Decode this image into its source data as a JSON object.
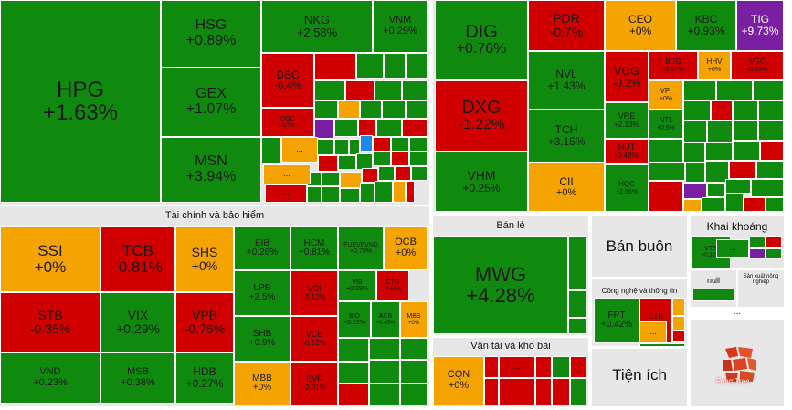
{
  "colors": {
    "up": "#0f8a0f",
    "down": "#d10000",
    "flat": "#f5a300",
    "ceiling": "#7b1fa2",
    "floor": "#1e88e5",
    "panel": "#e7e7e7"
  },
  "sections": {
    "finance": "Tài chính và bảo hiểm",
    "retail": "Bán lẻ",
    "wholesale": "Bán buôn",
    "mining": "Khai khoáng",
    "transport": "Vận tải và kho bãi",
    "tech": "Công nghệ và thông tin",
    "utilities": "Tiện ích",
    "null_label": "null",
    "agri": "Sản xuất nông nghiệp",
    "logo": "FoamTree",
    "more": "..."
  },
  "chart_data": {
    "type": "treemap",
    "title": "",
    "tiles": [
      {
        "ticker": "HPG",
        "change": "+1.63%",
        "c": "up"
      },
      {
        "ticker": "HSG",
        "change": "+0.89%",
        "c": "up"
      },
      {
        "ticker": "GEX",
        "change": "+1.07%",
        "c": "up"
      },
      {
        "ticker": "MSN",
        "change": "+3.94%",
        "c": "up"
      },
      {
        "ticker": "NKG",
        "change": "+2.58%",
        "c": "up"
      },
      {
        "ticker": "VNM",
        "change": "+0.29%",
        "c": "up"
      },
      {
        "ticker": "DBC",
        "change": "-0.4%",
        "c": "down"
      },
      {
        "ticker": "DGC",
        "change": "-0.7%",
        "c": "down"
      },
      {
        "ticker": "SSI",
        "change": "+0%",
        "c": "flat"
      },
      {
        "ticker": "TCB",
        "change": "-0.81%",
        "c": "down"
      },
      {
        "ticker": "SHS",
        "change": "+0%",
        "c": "flat"
      },
      {
        "ticker": "STB",
        "change": "-0.35%",
        "c": "down"
      },
      {
        "ticker": "VIX",
        "change": "+0.29%",
        "c": "up"
      },
      {
        "ticker": "VPB",
        "change": "-0.76%",
        "c": "down"
      },
      {
        "ticker": "VND",
        "change": "+0.23%",
        "c": "up"
      },
      {
        "ticker": "MSB",
        "change": "+0.38%",
        "c": "up"
      },
      {
        "ticker": "HDB",
        "change": "+0.27%",
        "c": "up"
      },
      {
        "ticker": "EIB",
        "change": "+0.26%",
        "c": "up"
      },
      {
        "ticker": "HCM",
        "change": "+0.81%",
        "c": "up"
      },
      {
        "ticker": "FUEVFVND",
        "change": "+0.79%",
        "c": "up"
      },
      {
        "ticker": "OCB",
        "change": "+0%",
        "c": "flat"
      },
      {
        "ticker": "LPB",
        "change": "+2.5%",
        "c": "up"
      },
      {
        "ticker": "VCI",
        "change": "-0.12%",
        "c": "down"
      },
      {
        "ticker": "VIB",
        "change": "+0.28%",
        "c": "up"
      },
      {
        "ticker": "CTG",
        "change": "-0.59%",
        "c": "down"
      },
      {
        "ticker": "SHB",
        "change": "+0.9%",
        "c": "up"
      },
      {
        "ticker": "VCB",
        "change": "-0.12%",
        "c": "down"
      },
      {
        "ticker": "BID",
        "change": "+0.22%",
        "c": "up"
      },
      {
        "ticker": "ACB",
        "change": "+0.45%",
        "c": "up"
      },
      {
        "ticker": "MBS",
        "change": "+0%",
        "c": "flat"
      },
      {
        "ticker": "MBB",
        "change": "+0%",
        "c": "flat"
      },
      {
        "ticker": "EVF",
        "change": "-2.91%",
        "c": "down"
      },
      {
        "ticker": "DIG",
        "change": "+0.76%",
        "c": "up"
      },
      {
        "ticker": "PDR",
        "change": "-0.7%",
        "c": "down"
      },
      {
        "ticker": "CEO",
        "change": "+0%",
        "c": "flat"
      },
      {
        "ticker": "KBC",
        "change": "+0.93%",
        "c": "up"
      },
      {
        "ticker": "TIG",
        "change": "+9.73%",
        "c": "ceiling"
      },
      {
        "ticker": "DXG",
        "change": "-1.22%",
        "c": "down"
      },
      {
        "ticker": "NVL",
        "change": "+1.43%",
        "c": "up"
      },
      {
        "ticker": "VCG",
        "change": "-0.2%",
        "c": "down"
      },
      {
        "ticker": "BCG",
        "change": "-0.67%",
        "c": "down"
      },
      {
        "ticker": "HHV",
        "change": "+0%",
        "c": "flat"
      },
      {
        "ticker": "VGC",
        "change": "-0.15%",
        "c": "down"
      },
      {
        "ticker": "VPI",
        "change": "+0%",
        "c": "flat"
      },
      {
        "ticker": "TCH",
        "change": "+3.15%",
        "c": "up"
      },
      {
        "ticker": "VRE",
        "change": "+2.13%",
        "c": "up"
      },
      {
        "ticker": "NTL",
        "change": "+0.5%",
        "c": "up"
      },
      {
        "ticker": "HUT",
        "change": "-0.48%",
        "c": "down"
      },
      {
        "ticker": "VHM",
        "change": "+0.25%",
        "c": "up"
      },
      {
        "ticker": "CII",
        "change": "+0%",
        "c": "flat"
      },
      {
        "ticker": "HQC",
        "change": "+2.56%",
        "c": "up"
      },
      {
        "ticker": "MWG",
        "change": "+4.28%",
        "c": "up"
      },
      {
        "ticker": "CQN",
        "change": "+0%",
        "c": "flat"
      },
      {
        "ticker": "FPT",
        "change": "+0.42%",
        "c": "up"
      },
      {
        "ticker": "CTR",
        "change": "-0.44%",
        "c": "down"
      },
      {
        "ticker": "VTS",
        "change": "+0.32%",
        "c": "up"
      }
    ]
  }
}
